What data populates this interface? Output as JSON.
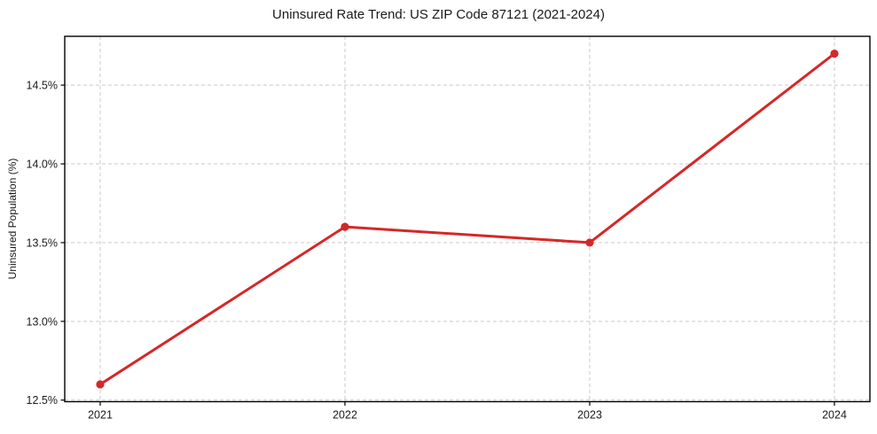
{
  "figure": {
    "background": "#ffffff"
  },
  "chart_data": {
    "type": "line",
    "title": "Uninsured Rate Trend: US ZIP Code 87121 (2021-2024)",
    "xlabel": "",
    "ylabel": "Uninsured Population (%)",
    "x": [
      2021,
      2022,
      2023,
      2024
    ],
    "x_tick_labels": [
      "2021",
      "2022",
      "2023",
      "2024"
    ],
    "series": [
      {
        "name": "uninsured-rate",
        "values": [
          12.6,
          13.6,
          13.5,
          14.7
        ],
        "color": "#d62728",
        "marker": "circle"
      }
    ],
    "y_ticks": [
      12.5,
      13.0,
      13.5,
      14.0,
      14.5
    ],
    "y_tick_labels": [
      "12.5%",
      "13.0%",
      "13.5%",
      "14.0%",
      "14.5%"
    ],
    "ylim": [
      12.49,
      14.81
    ],
    "grid": true,
    "grid_style": "dashed",
    "legend": "none"
  },
  "colors": {
    "line": "#d62728",
    "grid": "#c9c9c9",
    "spine": "#000000",
    "text": "#1a1a1a"
  }
}
